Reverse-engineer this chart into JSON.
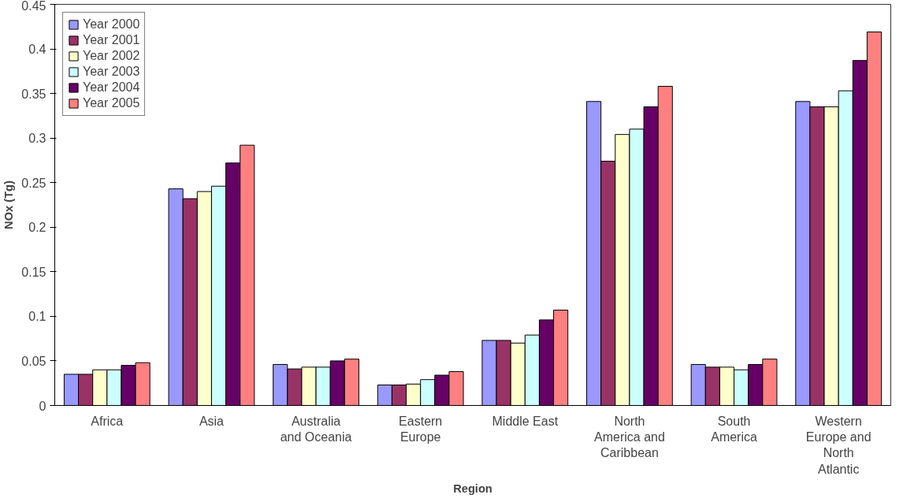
{
  "chart_data": {
    "type": "bar",
    "xlabel": "Region",
    "ylabel": "NOx (Tg)",
    "categories": [
      "Africa",
      "Asia",
      "Australia and Oceania",
      "Eastern Europe",
      "Middle East",
      "North America and Caribbean",
      "South America",
      "Western Europe and North Atlantic"
    ],
    "series": [
      {
        "name": "Year 2000",
        "color": "#9999ff",
        "values": [
          0.035,
          0.243,
          0.046,
          0.023,
          0.073,
          0.341,
          0.046,
          0.341
        ]
      },
      {
        "name": "Year 2001",
        "color": "#993366",
        "values": [
          0.035,
          0.232,
          0.041,
          0.023,
          0.073,
          0.274,
          0.043,
          0.335
        ]
      },
      {
        "name": "Year 2002",
        "color": "#ffffcc",
        "values": [
          0.04,
          0.24,
          0.043,
          0.024,
          0.07,
          0.304,
          0.043,
          0.335
        ]
      },
      {
        "name": "Year 2003",
        "color": "#ccffff",
        "values": [
          0.04,
          0.246,
          0.043,
          0.029,
          0.079,
          0.31,
          0.04,
          0.353
        ]
      },
      {
        "name": "Year 2004",
        "color": "#660066",
        "values": [
          0.045,
          0.272,
          0.05,
          0.034,
          0.096,
          0.335,
          0.046,
          0.387
        ]
      },
      {
        "name": "Year 2005",
        "color": "#ff8080",
        "values": [
          0.048,
          0.292,
          0.052,
          0.038,
          0.107,
          0.358,
          0.052,
          0.419
        ]
      }
    ],
    "ylim": [
      0,
      0.45
    ],
    "yticks": [
      0,
      0.05,
      0.1,
      0.15,
      0.2,
      0.25,
      0.3,
      0.35,
      0.4,
      0.45
    ],
    "grid": false,
    "legend": "top left"
  }
}
